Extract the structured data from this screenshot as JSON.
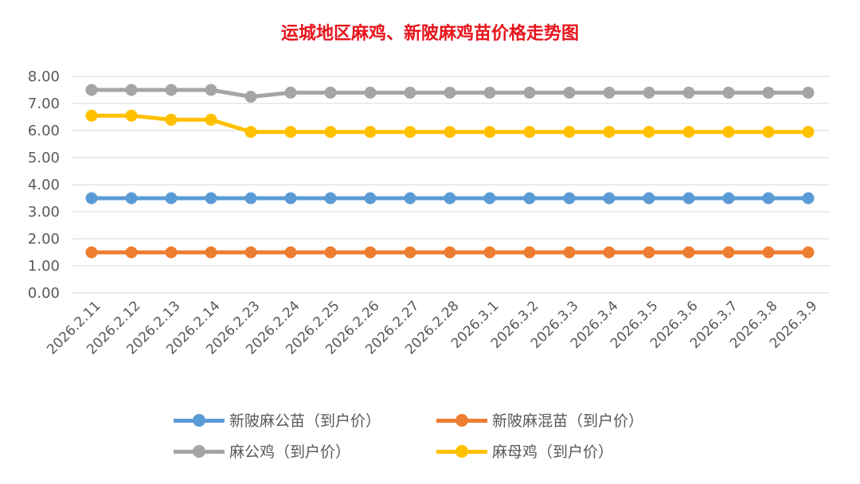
{
  "chart_data": {
    "type": "line",
    "title": "运城地区麻鸡、新陂麻鸡苗价格走势图",
    "categories": [
      "2026.2.11",
      "2026.2.12",
      "2026.2.13",
      "2026.2.14",
      "2026.2.23",
      "2026.2.24",
      "2026.2.25",
      "2026.2.26",
      "2026.2.27",
      "2026.2.28",
      "2026.3.1",
      "2026.3.2",
      "2026.3.3",
      "2026.3.4",
      "2026.3.5",
      "2026.3.6",
      "2026.3.7",
      "2026.3.8",
      "2026.3.9"
    ],
    "yticks": [
      "0.00",
      "1.00",
      "2.00",
      "3.00",
      "4.00",
      "5.00",
      "6.00",
      "7.00",
      "8.00"
    ],
    "ylim": [
      0,
      8
    ],
    "grid": true,
    "legend": "bottom",
    "series": [
      {
        "name": "新陂麻公苗（到户价）",
        "color": "#5b9bd5",
        "values": [
          3.5,
          3.5,
          3.5,
          3.5,
          3.5,
          3.5,
          3.5,
          3.5,
          3.5,
          3.5,
          3.5,
          3.5,
          3.5,
          3.5,
          3.5,
          3.5,
          3.5,
          3.5,
          3.5
        ]
      },
      {
        "name": "新陂麻混苗（到户价）",
        "color": "#ed7d31",
        "values": [
          1.5,
          1.5,
          1.5,
          1.5,
          1.5,
          1.5,
          1.5,
          1.5,
          1.5,
          1.5,
          1.5,
          1.5,
          1.5,
          1.5,
          1.5,
          1.5,
          1.5,
          1.5,
          1.5
        ]
      },
      {
        "name": "麻公鸡（到户价）",
        "color": "#a5a5a5",
        "values": [
          7.5,
          7.5,
          7.5,
          7.5,
          7.25,
          7.4,
          7.4,
          7.4,
          7.4,
          7.4,
          7.4,
          7.4,
          7.4,
          7.4,
          7.4,
          7.4,
          7.4,
          7.4,
          7.4
        ]
      },
      {
        "name": "麻母鸡（到户价）",
        "color": "#ffc000",
        "values": [
          6.55,
          6.55,
          6.4,
          6.4,
          5.95,
          5.95,
          5.95,
          5.95,
          5.95,
          5.95,
          5.95,
          5.95,
          5.95,
          5.95,
          5.95,
          5.95,
          5.95,
          5.95,
          5.95
        ]
      }
    ]
  }
}
